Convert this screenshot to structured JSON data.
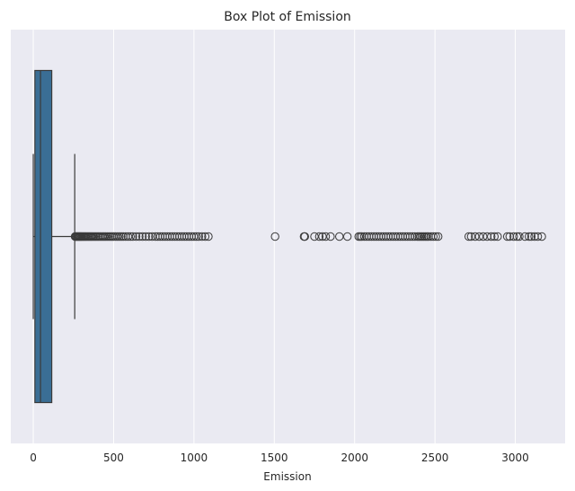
{
  "chart_data": {
    "type": "box",
    "orientation": "horizontal",
    "title": "Box Plot of Emission",
    "xlabel": "Emission",
    "ylabel": "",
    "xlim": [
      -140,
      3310
    ],
    "xticks": [
      0,
      500,
      1000,
      1500,
      2000,
      2500,
      3000
    ],
    "xtick_labels": [
      "0",
      "500",
      "1000",
      "1500",
      "2000",
      "2500",
      "3000"
    ],
    "grid": true,
    "colors": {
      "background": "#eaeaf2",
      "grid": "#ffffff",
      "box_fill": "#3a6e95",
      "line": "#3a3a3a",
      "text": "#262626"
    },
    "series": [
      {
        "min": 0,
        "q1": 10,
        "median": 45,
        "q3": 115,
        "whisker_low": 0,
        "whisker_high": 258,
        "outliers": [
          260,
          265,
          270,
          275,
          280,
          285,
          290,
          295,
          300,
          306,
          312,
          318,
          324,
          330,
          337,
          344,
          351,
          358,
          365,
          373,
          381,
          389,
          397,
          405,
          414,
          423,
          432,
          441,
          450,
          460,
          470,
          480,
          490,
          500,
          512,
          524,
          536,
          548,
          560,
          575,
          590,
          605,
          620,
          640,
          660,
          680,
          700,
          720,
          740,
          760,
          775,
          790,
          805,
          820,
          835,
          850,
          865,
          880,
          895,
          910,
          925,
          940,
          955,
          970,
          985,
          1000,
          1015,
          1030,
          1050,
          1070,
          1090,
          1505,
          1685,
          1690,
          1750,
          1780,
          1800,
          1820,
          1850,
          1905,
          1955,
          2025,
          2035,
          2045,
          2060,
          2075,
          2090,
          2105,
          2120,
          2135,
          2150,
          2165,
          2180,
          2195,
          2210,
          2225,
          2240,
          2255,
          2270,
          2285,
          2300,
          2315,
          2330,
          2345,
          2360,
          2375,
          2390,
          2400,
          2410,
          2420,
          2430,
          2440,
          2450,
          2460,
          2475,
          2490,
          2505,
          2520,
          2710,
          2725,
          2750,
          2775,
          2800,
          2825,
          2850,
          2870,
          2890,
          2950,
          2965,
          2990,
          3010,
          3025,
          3060,
          3085,
          3100,
          3120,
          3140,
          3165
        ]
      }
    ]
  }
}
